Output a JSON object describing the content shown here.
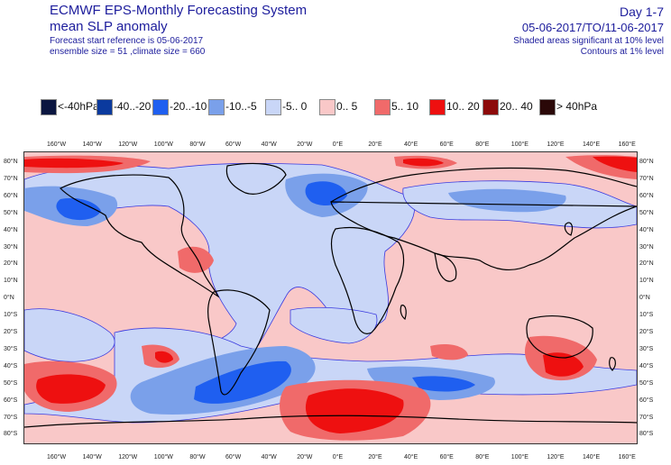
{
  "header": {
    "title_line1": "ECMWF EPS-Monthly Forecasting System",
    "title_line2": "mean SLP anomaly",
    "forecast_ref": "Forecast start reference is 05-06-2017",
    "ensemble_info": "ensemble size = 51  ,climate size = 660",
    "day_range": "Day 1-7",
    "date_range": "05-06-2017/TO/11-06-2017",
    "shaded_note": "Shaded areas significant at 10% level",
    "contour_note": "Contours at 1% level"
  },
  "legend": [
    {
      "label": "<-40hPa",
      "color": "#0b1640"
    },
    {
      "label": "-40..-20",
      "color": "#0b3a9e"
    },
    {
      "label": "-20..-10",
      "color": "#1f5ff0"
    },
    {
      "label": "-10..-5",
      "color": "#7aa0ea"
    },
    {
      "label": "-5..  0",
      "color": "#c9d6f7"
    },
    {
      "label": "0..  5",
      "color": "#f9c8c8"
    },
    {
      "label": "5..  10",
      "color": "#f06a6a"
    },
    {
      "label": "10..  20",
      "color": "#ee1010"
    },
    {
      "label": "20..  40",
      "color": "#8c0a0a"
    },
    {
      "label": ">  40hPa",
      "color": "#2a0808"
    }
  ],
  "axes": {
    "lon_ticks": [
      "160°W",
      "140°W",
      "120°W",
      "100°W",
      "80°W",
      "60°W",
      "40°W",
      "20°W",
      "0°E",
      "20°E",
      "40°E",
      "60°E",
      "80°E",
      "100°E",
      "120°E",
      "140°E",
      "160°E"
    ],
    "lat_ticks": [
      "80°N",
      "70°N",
      "60°N",
      "50°N",
      "40°N",
      "30°N",
      "20°N",
      "10°N",
      "0°N",
      "10°S",
      "20°S",
      "30°S",
      "40°S",
      "50°S",
      "60°S",
      "70°S",
      "80°S"
    ]
  },
  "map_layers": [
    {
      "name": "neg-small-anomaly",
      "color": "#c9d6f7"
    },
    {
      "name": "neg-medium-anomaly",
      "color": "#7aa0ea"
    },
    {
      "name": "neg-strong-anomaly",
      "color": "#1f5ff0"
    },
    {
      "name": "pos-medium-anomaly",
      "color": "#f06a6a"
    },
    {
      "name": "pos-strong-anomaly",
      "color": "#ee1010"
    },
    {
      "name": "coastlines",
      "color": "#000000"
    }
  ]
}
